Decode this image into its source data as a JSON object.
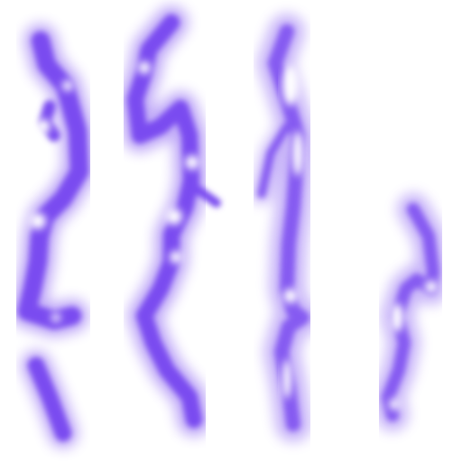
{
  "image": {
    "background_color": "#ffffff",
    "stroke_color": "#7a4cf0",
    "highlight_color": "#ffffff",
    "stroke_count": 4
  }
}
